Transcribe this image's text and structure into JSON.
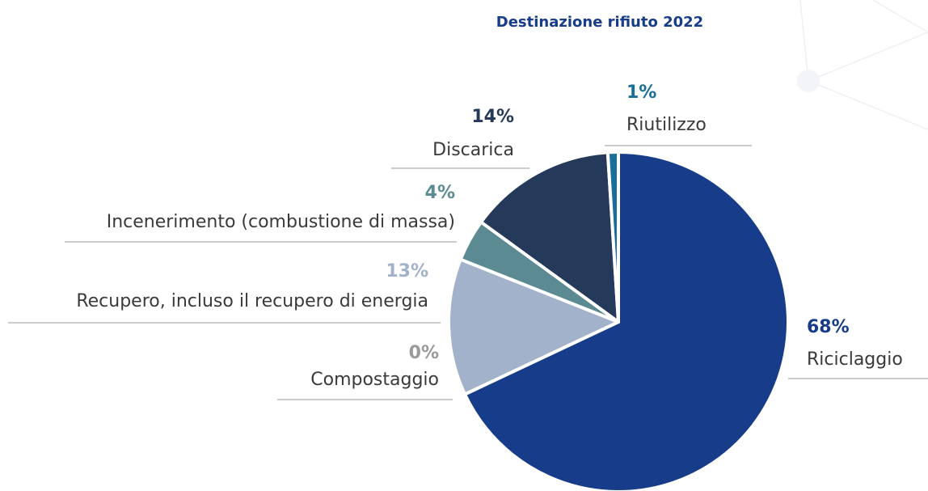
{
  "chart_data": {
    "type": "pie",
    "title": "Destinazione rifiuto 2022",
    "categories": [
      "Riciclaggio",
      "Compostaggio",
      "Recupero, incluso il recupero di energia",
      "Incenerimento (combustione di massa)",
      "Discarica",
      "Riutilizzo"
    ],
    "values": [
      68,
      0,
      13,
      4,
      14,
      1
    ],
    "value_labels": [
      "68%",
      "0%",
      "13%",
      "4%",
      "14%",
      "1%"
    ],
    "colors": [
      "#173c8a",
      "#9a9a9a",
      "#a2b2cb",
      "#5b8a93",
      "#253a5a",
      "#1a6e9a"
    ]
  }
}
